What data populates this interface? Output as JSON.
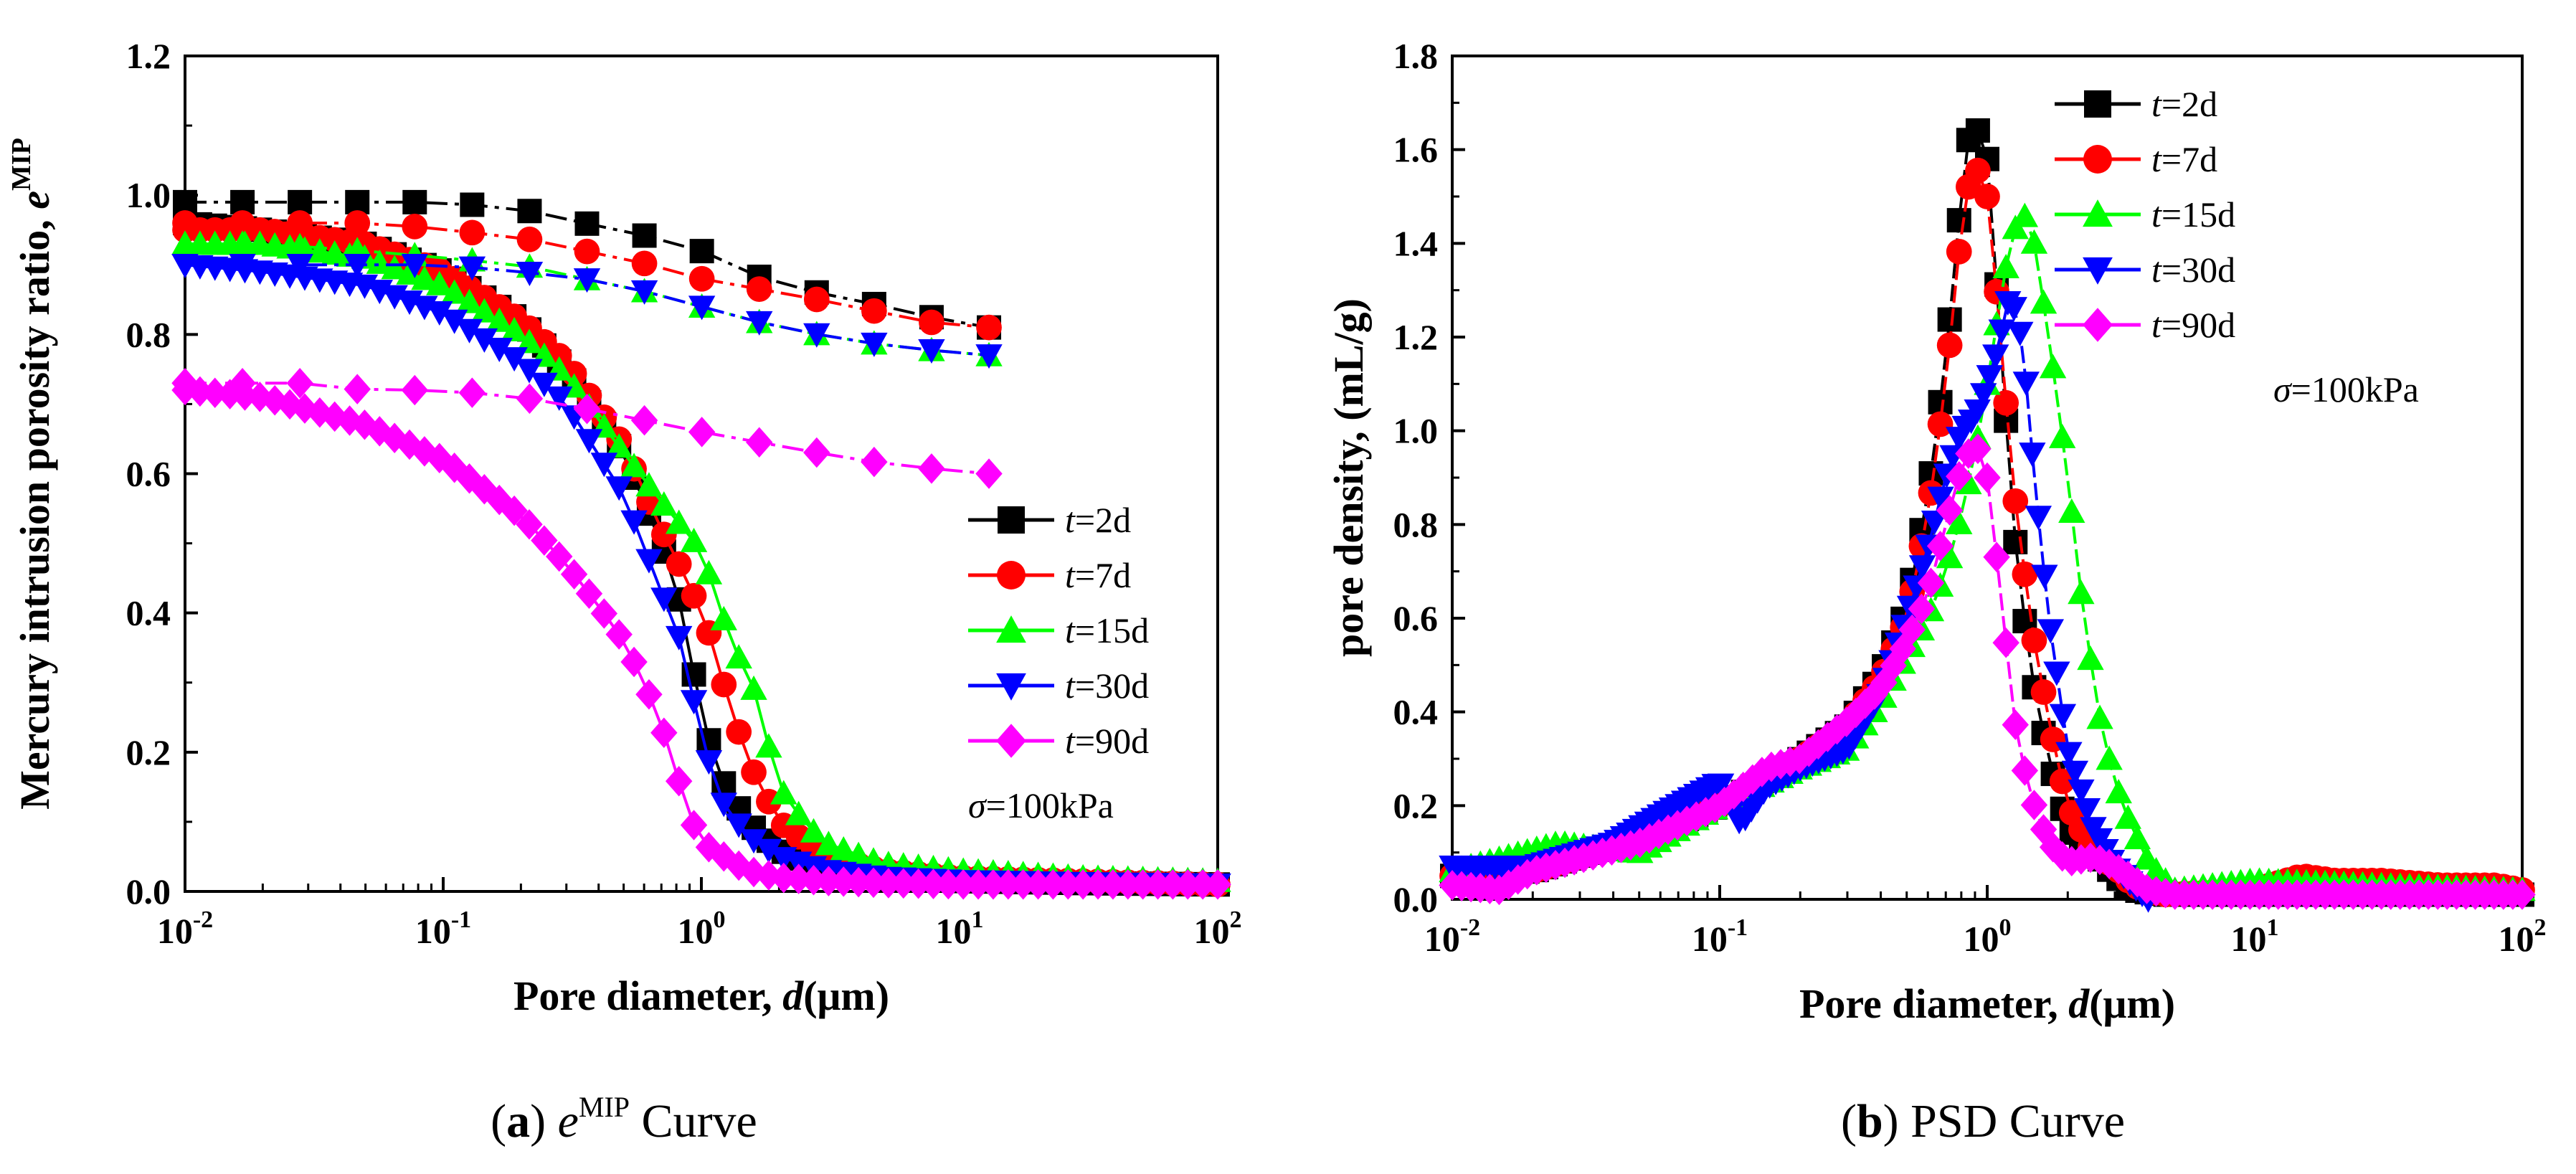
{
  "chart_data": [
    {
      "type": "line",
      "panel": "a",
      "caption": {
        "letter": "a",
        "symbol": "e",
        "symbol_sup": "MIP",
        "text": "Curve"
      },
      "title": "",
      "xlabel": {
        "text": "Pore diameter, ",
        "var": "d",
        "unit": "(μm)"
      },
      "ylabel": {
        "text": "Mercury intrusion porosity ratio, ",
        "var": "e",
        "sup": "MIP"
      },
      "xscale": "log",
      "xlim": [
        0.01,
        100
      ],
      "ylim": [
        0,
        1.2
      ],
      "xticks": [
        0.01,
        0.1,
        1,
        10,
        100
      ],
      "xtick_labels": [
        {
          "base": "10",
          "exp": "-2"
        },
        {
          "base": "10",
          "exp": "-1"
        },
        {
          "base": "10",
          "exp": "0"
        },
        {
          "base": "10",
          "exp": "1"
        },
        {
          "base": "10",
          "exp": "2"
        }
      ],
      "yticks": [
        0,
        0.2,
        0.4,
        0.6,
        0.8,
        1.0,
        1.2
      ],
      "ytick_labels": [
        "0.0",
        "0.2",
        "0.4",
        "0.6",
        "0.8",
        "1.0",
        "1.2"
      ],
      "legend": {
        "position": "right-middle",
        "annotation": {
          "symbol": "σ",
          "text": "=100kPa"
        }
      },
      "series": [
        {
          "name": "t=2d",
          "label_var": "t",
          "label_rest": "=2d",
          "color": "#000000",
          "marker": "square",
          "intrusion": {
            "x": [
              0.01,
              0.02,
              0.05,
              0.1,
              0.2,
              0.3,
              0.5,
              0.7,
              0.85,
              1.0,
              1.2,
              1.5,
              2,
              3,
              5,
              10,
              30,
              100
            ],
            "y": [
              0.96,
              0.95,
              0.93,
              0.89,
              0.82,
              0.75,
              0.63,
              0.5,
              0.4,
              0.25,
              0.16,
              0.1,
              0.06,
              0.03,
              0.02,
              0.015,
              0.012,
              0.01
            ]
          },
          "extrusion": {
            "x": [
              0.01,
              0.015,
              0.02,
              0.03,
              0.05,
              0.1,
              0.2,
              0.35,
              0.5,
              1.0,
              2.0,
              4.0,
              6.5,
              13
            ],
            "y": [
              0.99,
              0.99,
              0.99,
              0.99,
              0.99,
              0.99,
              0.98,
              0.96,
              0.95,
              0.92,
              0.87,
              0.85,
              0.83,
              0.81
            ]
          }
        },
        {
          "name": "t=7d",
          "label_var": "t",
          "label_rest": "=7d",
          "color": "#ff0000",
          "marker": "circle",
          "intrusion": {
            "x": [
              0.01,
              0.02,
              0.05,
              0.1,
              0.2,
              0.3,
              0.5,
              0.7,
              0.9,
              1.1,
              1.3,
              1.6,
              2,
              3,
              5,
              10,
              30,
              100
            ],
            "y": [
              0.95,
              0.95,
              0.93,
              0.89,
              0.82,
              0.76,
              0.64,
              0.52,
              0.44,
              0.36,
              0.26,
              0.17,
              0.1,
              0.05,
              0.03,
              0.02,
              0.015,
              0.01
            ]
          },
          "extrusion": {
            "x": [
              0.01,
              0.02,
              0.035,
              0.06,
              0.1,
              0.2,
              0.25,
              0.35,
              0.5,
              1.0,
              2.0,
              4.0,
              6.5,
              13
            ],
            "y": [
              0.96,
              0.96,
              0.96,
              0.96,
              0.95,
              0.94,
              0.93,
              0.92,
              0.91,
              0.88,
              0.86,
              0.84,
              0.82,
              0.81
            ]
          }
        },
        {
          "name": "t=15d",
          "label_var": "t",
          "label_rest": "=15d",
          "color": "#00ff00",
          "marker": "triangle-up",
          "intrusion": {
            "x": [
              0.01,
              0.02,
              0.05,
              0.1,
              0.2,
              0.3,
              0.5,
              0.7,
              1.0,
              1.3,
              1.6,
              2,
              2.5,
              3,
              5,
              10,
              30,
              100
            ],
            "y": [
              0.93,
              0.93,
              0.91,
              0.87,
              0.8,
              0.74,
              0.63,
              0.56,
              0.49,
              0.36,
              0.29,
              0.15,
              0.1,
              0.07,
              0.04,
              0.03,
              0.02,
              0.015
            ]
          },
          "extrusion": {
            "x": [
              0.01,
              0.02,
              0.05,
              0.1,
              0.2,
              0.35,
              0.5,
              1.0,
              2.0,
              4.0,
              6.5,
              13
            ],
            "y": [
              0.93,
              0.93,
              0.92,
              0.91,
              0.9,
              0.88,
              0.87,
              0.84,
              0.81,
              0.79,
              0.78,
              0.77
            ]
          }
        },
        {
          "name": "t=30d",
          "label_var": "t",
          "label_rest": "=30d",
          "color": "#0000ff",
          "marker": "triangle-down",
          "intrusion": {
            "x": [
              0.01,
              0.02,
              0.05,
              0.1,
              0.2,
              0.3,
              0.5,
              0.7,
              0.85,
              1.0,
              1.2,
              1.5,
              2,
              3,
              5,
              10,
              30,
              100
            ],
            "y": [
              0.9,
              0.89,
              0.87,
              0.83,
              0.76,
              0.7,
              0.57,
              0.43,
              0.35,
              0.22,
              0.13,
              0.08,
              0.05,
              0.03,
              0.02,
              0.015,
              0.012,
              0.01
            ]
          },
          "extrusion": {
            "x": [
              0.01,
              0.02,
              0.05,
              0.1,
              0.2,
              0.35,
              0.5,
              1.0,
              2.0,
              4.0,
              6.5,
              13
            ],
            "y": [
              0.9,
              0.9,
              0.9,
              0.9,
              0.89,
              0.88,
              0.87,
              0.84,
              0.81,
              0.79,
              0.78,
              0.77
            ]
          }
        },
        {
          "name": "t=90d",
          "label_var": "t",
          "label_rest": "=90d",
          "color": "#ff00ff",
          "marker": "diamond",
          "intrusion": {
            "x": [
              0.01,
              0.02,
              0.05,
              0.1,
              0.2,
              0.3,
              0.4,
              0.5,
              0.6,
              0.7,
              0.8,
              0.9,
              1.0,
              1.5,
              2,
              3,
              5,
              10,
              30,
              100
            ],
            "y": [
              0.72,
              0.71,
              0.67,
              0.62,
              0.54,
              0.47,
              0.41,
              0.36,
              0.3,
              0.24,
              0.17,
              0.11,
              0.07,
              0.03,
              0.02,
              0.015,
              0.012,
              0.01,
              0.01,
              0.01
            ]
          },
          "extrusion": {
            "x": [
              0.01,
              0.015,
              0.02,
              0.03,
              0.05,
              0.07,
              0.1,
              0.2,
              0.4,
              1.0,
              2.0,
              4.0,
              6.5,
              13
            ],
            "y": [
              0.73,
              0.73,
              0.73,
              0.73,
              0.72,
              0.72,
              0.72,
              0.71,
              0.69,
              0.66,
              0.64,
              0.62,
              0.61,
              0.6
            ]
          }
        }
      ]
    },
    {
      "type": "line",
      "panel": "b",
      "caption": {
        "letter": "b",
        "text": "PSD Curve"
      },
      "title": "",
      "xlabel": {
        "text": "Pore diameter, ",
        "var": "d",
        "unit": "(μm)"
      },
      "ylabel": {
        "text": "pore density, (mL/g)"
      },
      "xscale": "log",
      "xlim": [
        0.01,
        100
      ],
      "ylim": [
        0,
        1.8
      ],
      "xticks": [
        0.01,
        0.1,
        1,
        10,
        100
      ],
      "xtick_labels": [
        {
          "base": "10",
          "exp": "-2"
        },
        {
          "base": "10",
          "exp": "-1"
        },
        {
          "base": "10",
          "exp": "0"
        },
        {
          "base": "10",
          "exp": "1"
        },
        {
          "base": "10",
          "exp": "2"
        }
      ],
      "yticks": [
        0,
        0.2,
        0.4,
        0.6,
        0.8,
        1.0,
        1.2,
        1.4,
        1.6,
        1.8
      ],
      "ytick_labels": [
        "0.0",
        "0.2",
        "0.4",
        "0.6",
        "0.8",
        "1.0",
        "1.2",
        "1.4",
        "1.6",
        "1.8"
      ],
      "legend": {
        "position": "top-right",
        "annotation": {
          "symbol": "σ",
          "text": "=100kPa"
        }
      },
      "series": [
        {
          "name": "t=2d",
          "label_var": "t",
          "label_rest": "=2d",
          "color": "#000000",
          "marker": "square",
          "x": [
            0.01,
            0.02,
            0.05,
            0.1,
            0.2,
            0.3,
            0.4,
            0.5,
            0.6,
            0.7,
            0.75,
            0.8,
            0.85,
            0.9,
            0.95,
            1.0,
            1.05,
            1.1,
            1.2,
            1.3,
            1.5,
            1.7,
            2.0,
            2.5,
            3.0,
            3.5,
            4.5,
            10,
            30,
            100
          ],
          "y": [
            0.05,
            0.06,
            0.13,
            0.2,
            0.3,
            0.37,
            0.48,
            0.62,
            0.86,
            1.15,
            1.33,
            1.5,
            1.62,
            1.65,
            1.63,
            1.58,
            1.45,
            1.25,
            0.95,
            0.7,
            0.45,
            0.3,
            0.15,
            0.1,
            0.05,
            0.02,
            0.01,
            0.01,
            0.01,
            0.01
          ]
        },
        {
          "name": "t=7d",
          "label_var": "t",
          "label_rest": "=7d",
          "color": "#ff0000",
          "marker": "circle",
          "x": [
            0.01,
            0.02,
            0.05,
            0.1,
            0.2,
            0.3,
            0.4,
            0.5,
            0.6,
            0.7,
            0.75,
            0.8,
            0.85,
            0.9,
            0.95,
            1.0,
            1.05,
            1.1,
            1.2,
            1.3,
            1.5,
            1.7,
            2.0,
            2.5,
            3.0,
            3.5,
            4.5,
            10,
            15,
            20,
            30,
            50,
            80,
            100
          ],
          "y": [
            0.05,
            0.06,
            0.13,
            0.2,
            0.3,
            0.37,
            0.47,
            0.6,
            0.82,
            1.1,
            1.27,
            1.43,
            1.52,
            1.56,
            1.55,
            1.5,
            1.4,
            1.25,
            1.0,
            0.8,
            0.55,
            0.38,
            0.2,
            0.1,
            0.07,
            0.03,
            0.01,
            0.02,
            0.05,
            0.04,
            0.04,
            0.03,
            0.03,
            0.02
          ]
        },
        {
          "name": "t=15d",
          "label_var": "t",
          "label_rest": "=15d",
          "color": "#00ff00",
          "marker": "triangle-up",
          "x": [
            0.01,
            0.025,
            0.05,
            0.1,
            0.2,
            0.3,
            0.4,
            0.5,
            0.6,
            0.7,
            0.8,
            0.9,
            1.0,
            1.1,
            1.2,
            1.3,
            1.4,
            1.5,
            1.7,
            2.0,
            2.3,
            2.7,
            3.2,
            4.0,
            5.0,
            10,
            30,
            100
          ],
          "y": [
            0.06,
            0.12,
            0.1,
            0.2,
            0.28,
            0.32,
            0.42,
            0.52,
            0.6,
            0.7,
            0.82,
            0.95,
            1.1,
            1.25,
            1.38,
            1.45,
            1.46,
            1.4,
            1.2,
            0.9,
            0.6,
            0.35,
            0.2,
            0.08,
            0.02,
            0.04,
            0.03,
            0.02
          ]
        },
        {
          "name": "t=30d",
          "label_var": "t",
          "label_rest": "=30d",
          "color": "#0000ff",
          "marker": "triangle-down",
          "x": [
            0.01,
            0.02,
            0.04,
            0.06,
            0.08,
            0.1,
            0.12,
            0.15,
            0.2,
            0.3,
            0.4,
            0.5,
            0.6,
            0.7,
            0.8,
            0.9,
            1.0,
            1.1,
            1.2,
            1.3,
            1.4,
            1.5,
            1.7,
            2.0,
            2.5,
            3.0,
            3.5,
            4.0
          ],
          "y": [
            0.07,
            0.07,
            0.12,
            0.18,
            0.22,
            0.25,
            0.16,
            0.24,
            0.28,
            0.32,
            0.44,
            0.6,
            0.75,
            0.9,
            1.0,
            1.03,
            1.1,
            1.18,
            1.28,
            1.25,
            1.1,
            0.9,
            0.6,
            0.32,
            0.15,
            0.07,
            0.03,
            0.0
          ]
        },
        {
          "name": "t=90d",
          "label_var": "t",
          "label_rest": "=90d",
          "color": "#ff00ff",
          "marker": "diamond",
          "x": [
            0.01,
            0.015,
            0.02,
            0.05,
            0.1,
            0.15,
            0.2,
            0.3,
            0.4,
            0.5,
            0.6,
            0.7,
            0.8,
            0.9,
            1.0,
            1.1,
            1.2,
            1.3,
            1.5,
            1.7,
            2.0,
            2.5,
            3.0,
            4.0,
            5.0,
            10,
            30,
            100
          ],
          "y": [
            0.03,
            0.02,
            0.06,
            0.12,
            0.2,
            0.28,
            0.3,
            0.38,
            0.45,
            0.55,
            0.65,
            0.8,
            0.92,
            0.98,
            0.9,
            0.7,
            0.5,
            0.33,
            0.2,
            0.12,
            0.08,
            0.09,
            0.07,
            0.02,
            0.01,
            0.01,
            0.01,
            0.01
          ]
        }
      ]
    }
  ]
}
